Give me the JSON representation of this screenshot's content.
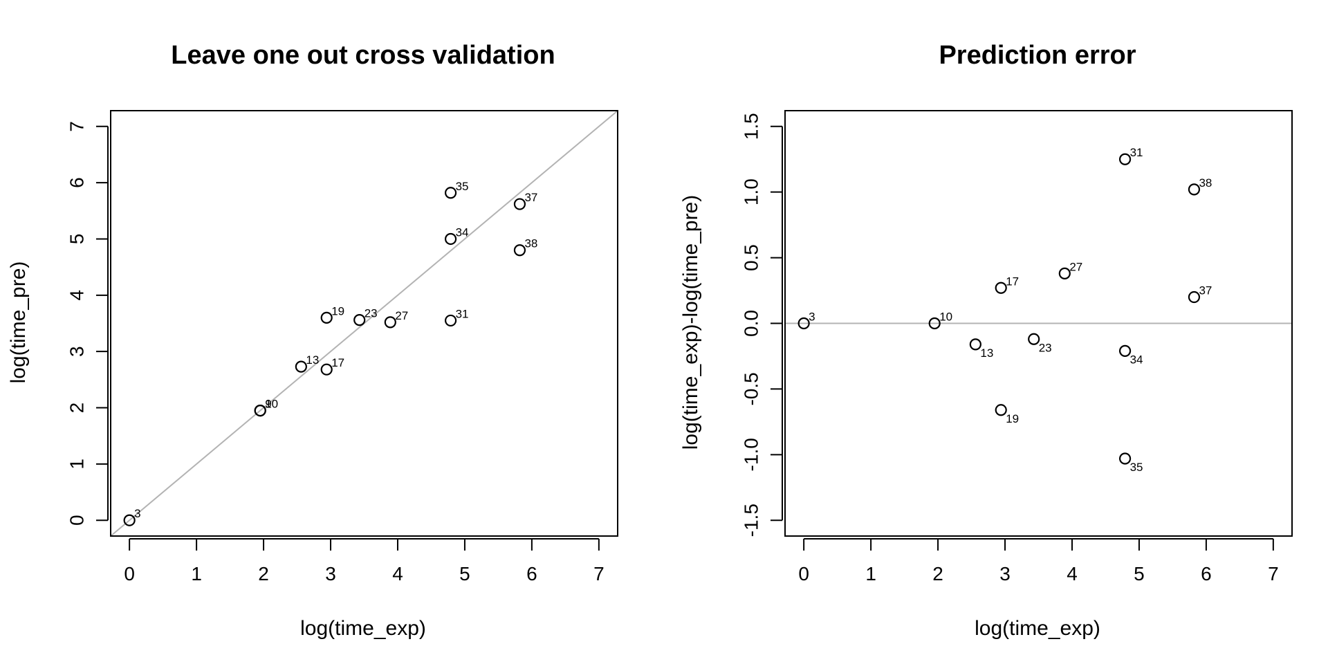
{
  "chart_data": [
    {
      "type": "scatter",
      "title": "Leave one out cross validation",
      "xlabel": "log(time_exp)",
      "ylabel": "log(time_pre)",
      "xlim": [
        -0.28,
        7.28
      ],
      "ylim": [
        -0.28,
        7.28
      ],
      "x_ticks": [
        0,
        1,
        2,
        3,
        4,
        5,
        6,
        7
      ],
      "y_ticks": [
        0,
        1,
        2,
        3,
        4,
        5,
        6,
        7
      ],
      "reference_line": {
        "type": "identity",
        "color": "#b3b3b3"
      },
      "label_position": "upper-right",
      "points": [
        {
          "x": 0.0,
          "y": 0.0,
          "label": "3"
        },
        {
          "x": 1.95,
          "y": 1.95,
          "label": "9"
        },
        {
          "x": 1.95,
          "y": 1.95,
          "label": "10"
        },
        {
          "x": 2.56,
          "y": 2.73,
          "label": "13"
        },
        {
          "x": 2.94,
          "y": 2.68,
          "label": "17"
        },
        {
          "x": 2.94,
          "y": 3.6,
          "label": "19"
        },
        {
          "x": 3.43,
          "y": 3.56,
          "label": "23"
        },
        {
          "x": 3.89,
          "y": 3.52,
          "label": "27"
        },
        {
          "x": 4.79,
          "y": 5.0,
          "label": "34"
        },
        {
          "x": 4.79,
          "y": 5.82,
          "label": "35"
        },
        {
          "x": 4.79,
          "y": 3.55,
          "label": "31"
        },
        {
          "x": 5.82,
          "y": 5.62,
          "label": "37"
        },
        {
          "x": 5.82,
          "y": 4.8,
          "label": "38"
        }
      ]
    },
    {
      "type": "scatter",
      "title": "Prediction error",
      "xlabel": "log(time_exp)",
      "ylabel": "log(time_exp)-log(time_pre)",
      "xlim": [
        -0.28,
        7.28
      ],
      "ylim": [
        -1.62,
        1.62
      ],
      "x_ticks": [
        0,
        1,
        2,
        3,
        4,
        5,
        6,
        7
      ],
      "y_ticks": [
        -1.5,
        -1.0,
        -0.5,
        0.0,
        0.5,
        1.0,
        1.5
      ],
      "y_tick_labels": [
        "-1.5",
        "-1.0",
        "-0.5",
        "0.0",
        "0.5",
        "1.0",
        "1.5"
      ],
      "reference_line": {
        "type": "horizontal",
        "y": 0,
        "color": "#b3b3b3"
      },
      "points": [
        {
          "x": 0.0,
          "y": 0.0,
          "label": "3",
          "label_position": "upper-right"
        },
        {
          "x": 1.95,
          "y": 0.0,
          "label": "10",
          "label_position": "upper-right"
        },
        {
          "x": 2.56,
          "y": -0.16,
          "label": "13",
          "label_position": "lower-right"
        },
        {
          "x": 2.94,
          "y": 0.27,
          "label": "17",
          "label_position": "upper-right"
        },
        {
          "x": 2.94,
          "y": -0.66,
          "label": "19",
          "label_position": "lower-right"
        },
        {
          "x": 3.43,
          "y": -0.12,
          "label": "23",
          "label_position": "lower-right"
        },
        {
          "x": 3.89,
          "y": 0.38,
          "label": "27",
          "label_position": "upper-right"
        },
        {
          "x": 4.79,
          "y": 1.25,
          "label": "31",
          "label_position": "upper-right"
        },
        {
          "x": 4.79,
          "y": -0.21,
          "label": "34",
          "label_position": "lower-right"
        },
        {
          "x": 4.79,
          "y": -1.03,
          "label": "35",
          "label_position": "lower-right"
        },
        {
          "x": 5.82,
          "y": 0.2,
          "label": "37",
          "label_position": "upper-right"
        },
        {
          "x": 5.82,
          "y": 1.02,
          "label": "38",
          "label_position": "upper-right"
        }
      ]
    }
  ]
}
